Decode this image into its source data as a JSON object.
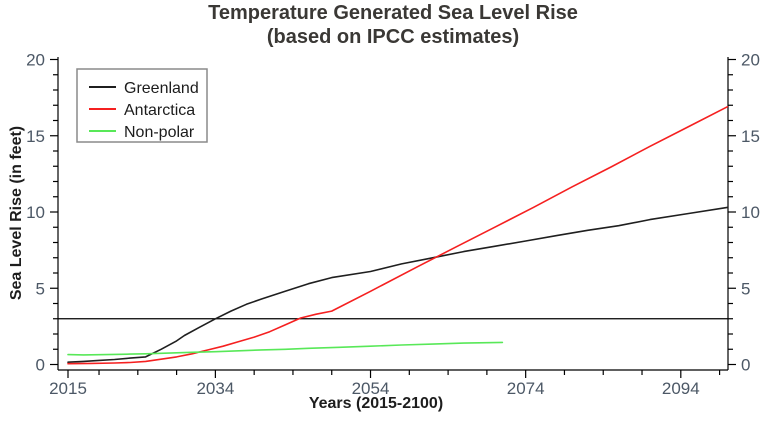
{
  "title": {
    "line1": "Temperature Generated Sea Level Rise",
    "line2": "(based on IPCC estimates)"
  },
  "colors": {
    "axis": "#000000",
    "tick_label": "#4c5866",
    "title": "#3a3835",
    "greenland": "#1f1f1f",
    "antarctica": "#f52020",
    "nonpolar": "#58e858",
    "legend_border": "#8a8a8a",
    "reference_line": "#000000"
  },
  "legend": {
    "items": [
      {
        "label": "Greenland",
        "color": "#1f1f1f"
      },
      {
        "label": "Antarctica",
        "color": "#f52020"
      },
      {
        "label": "Non-polar",
        "color": "#58e858"
      }
    ]
  },
  "chart_data": {
    "type": "line",
    "title": "Temperature Generated Sea Level Rise (based on IPCC estimates)",
    "xlabel": "Years (2015-2100)",
    "ylabel": "Sea Level Rise (in feet)",
    "xlim": [
      2015,
      2100
    ],
    "ylim": [
      0,
      20
    ],
    "grid": false,
    "legend_position": "top-left",
    "x_ticks": {
      "major": [
        2015,
        2034,
        2054,
        2074,
        2094
      ],
      "major_labels": [
        "2015",
        "2034",
        "2054",
        "2074",
        "2094"
      ],
      "minor": [
        2019,
        2024,
        2029,
        2039,
        2044,
        2049,
        2059,
        2064,
        2069,
        2079,
        2084,
        2089,
        2099
      ]
    },
    "y_ticks": {
      "major": [
        0,
        5,
        10,
        15,
        20
      ],
      "major_labels": [
        "0",
        "5",
        "10",
        "15",
        "20"
      ],
      "minor_step": 1,
      "sides": [
        "left",
        "right"
      ]
    },
    "reference_lines": [
      {
        "type": "hline",
        "y": 3,
        "color": "#000000"
      }
    ],
    "series": [
      {
        "name": "Greenland",
        "color": "#1f1f1f",
        "points": [
          [
            2015,
            0.15
          ],
          [
            2017,
            0.2
          ],
          [
            2019,
            0.27
          ],
          [
            2021,
            0.33
          ],
          [
            2023,
            0.42
          ],
          [
            2025,
            0.5
          ],
          [
            2027,
            1.0
          ],
          [
            2029,
            1.55
          ],
          [
            2030,
            1.9
          ],
          [
            2032,
            2.45
          ],
          [
            2034,
            3.0
          ],
          [
            2036,
            3.5
          ],
          [
            2038,
            3.95
          ],
          [
            2040,
            4.3
          ],
          [
            2043,
            4.8
          ],
          [
            2046,
            5.3
          ],
          [
            2049,
            5.7
          ],
          [
            2054,
            6.1
          ],
          [
            2058,
            6.6
          ],
          [
            2062,
            7.0
          ],
          [
            2066,
            7.4
          ],
          [
            2070,
            7.75
          ],
          [
            2074,
            8.1
          ],
          [
            2078,
            8.45
          ],
          [
            2082,
            8.8
          ],
          [
            2086,
            9.1
          ],
          [
            2090,
            9.5
          ],
          [
            2095,
            9.9
          ],
          [
            2100,
            10.3
          ]
        ]
      },
      {
        "name": "Antarctica",
        "color": "#f52020",
        "points": [
          [
            2015,
            0.05
          ],
          [
            2018,
            0.07
          ],
          [
            2021,
            0.1
          ],
          [
            2023,
            0.13
          ],
          [
            2025,
            0.2
          ],
          [
            2027,
            0.35
          ],
          [
            2029,
            0.5
          ],
          [
            2031,
            0.7
          ],
          [
            2033,
            0.95
          ],
          [
            2035,
            1.2
          ],
          [
            2037,
            1.5
          ],
          [
            2039,
            1.8
          ],
          [
            2041,
            2.15
          ],
          [
            2043,
            2.6
          ],
          [
            2045,
            3.05
          ],
          [
            2047,
            3.3
          ],
          [
            2049,
            3.5
          ],
          [
            2054,
            4.8
          ],
          [
            2060,
            6.4
          ],
          [
            2065,
            7.7
          ],
          [
            2070,
            9.0
          ],
          [
            2075,
            10.3
          ],
          [
            2080,
            11.65
          ],
          [
            2085,
            12.95
          ],
          [
            2090,
            14.3
          ],
          [
            2095,
            15.6
          ],
          [
            2100,
            16.9
          ]
        ]
      },
      {
        "name": "Non-polar",
        "color": "#58e858",
        "points": [
          [
            2015,
            0.65
          ],
          [
            2017,
            0.63
          ],
          [
            2019,
            0.64
          ],
          [
            2021,
            0.66
          ],
          [
            2023,
            0.68
          ],
          [
            2025,
            0.7
          ],
          [
            2028,
            0.75
          ],
          [
            2031,
            0.8
          ],
          [
            2034,
            0.84
          ],
          [
            2037,
            0.9
          ],
          [
            2040,
            0.96
          ],
          [
            2043,
            1.0
          ],
          [
            2046,
            1.06
          ],
          [
            2050,
            1.13
          ],
          [
            2054,
            1.2
          ],
          [
            2058,
            1.28
          ],
          [
            2062,
            1.34
          ],
          [
            2066,
            1.4
          ],
          [
            2069,
            1.43
          ],
          [
            2071,
            1.45
          ]
        ]
      }
    ]
  }
}
